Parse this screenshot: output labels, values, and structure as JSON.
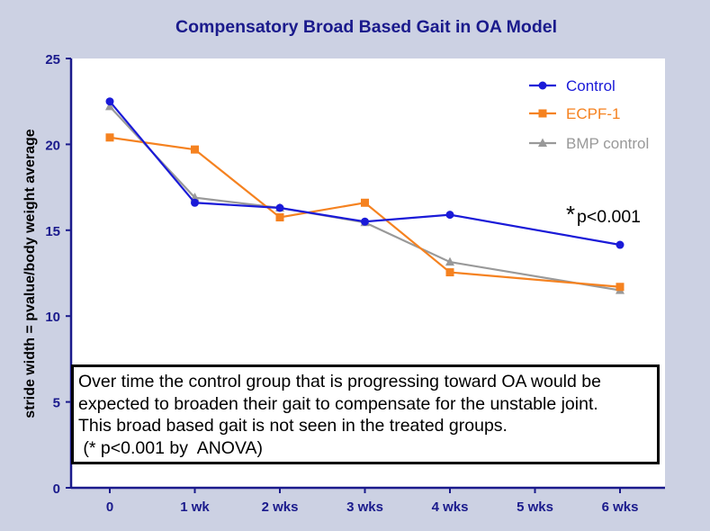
{
  "chart_data": {
    "type": "line",
    "title": "Compensatory Broad Based Gait in OA Model",
    "xlabel": "",
    "ylabel": "stride width = pvalue/body weight average",
    "categories": [
      "0",
      "1 wk",
      "2 wks",
      "3 wks",
      "4 wks",
      "5 wks",
      "6 wks"
    ],
    "ylim": [
      0,
      25
    ],
    "yticks": [
      0,
      5,
      10,
      15,
      20,
      25
    ],
    "grid": false,
    "legend_position": "top-right",
    "series": [
      {
        "name": "Control",
        "color": "#1a1ad8",
        "marker": "circle",
        "values": [
          22.5,
          16.6,
          16.3,
          15.5,
          15.9,
          null,
          14.15
        ]
      },
      {
        "name": "ECPF-1",
        "color": "#f58220",
        "marker": "square",
        "values": [
          20.4,
          19.7,
          15.75,
          16.6,
          12.55,
          null,
          11.7
        ]
      },
      {
        "name": "BMP control",
        "color": "#999999",
        "marker": "triangle",
        "values": [
          22.2,
          16.9,
          16.3,
          15.45,
          13.15,
          null,
          11.5
        ]
      }
    ],
    "annotation": {
      "star": "*",
      "text": "p<0.001"
    }
  },
  "note": {
    "lines": [
      "Over time the control group that is progressing toward OA would be",
      "expected to broaden their gait to compensate for the unstable joint.",
      "This broad based gait is not seen in the treated groups.",
      " (* p<0.001 by  ANOVA)"
    ]
  },
  "colors": {
    "background": "#ccd1e3",
    "plot_area": "#ffffff",
    "axis": "#1a1a8c",
    "title": "#1a1a8c"
  }
}
